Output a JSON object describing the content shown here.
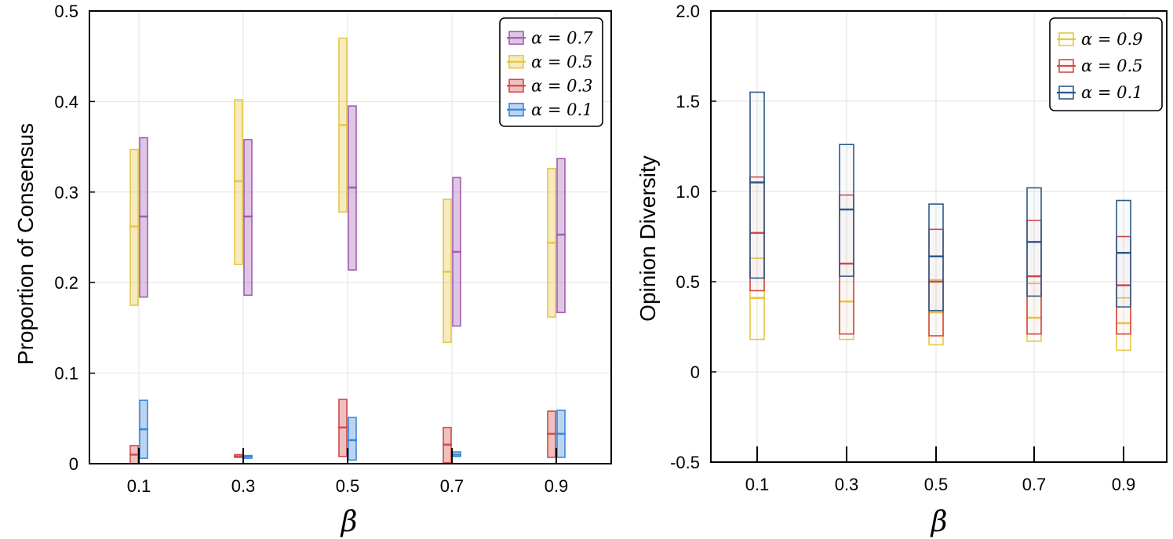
{
  "chart_data": [
    {
      "type": "box",
      "xlabel": "β",
      "ylabel": "Proportion of Consensus",
      "categories": [
        "0.1",
        "0.3",
        "0.5",
        "0.7",
        "0.9"
      ],
      "ylim": [
        0,
        0.5
      ],
      "yticks": [
        "0",
        "0.1",
        "0.2",
        "0.3",
        "0.4",
        "0.5"
      ],
      "grid": true,
      "legend_position": "top-right",
      "series": [
        {
          "name": "α = 0.7",
          "color": "#a35db2",
          "low": [
            0.184,
            0.186,
            0.214,
            0.152,
            0.167
          ],
          "mid": [
            0.273,
            0.273,
            0.305,
            0.234,
            0.253
          ],
          "high": [
            0.36,
            0.358,
            0.395,
            0.316,
            0.337
          ]
        },
        {
          "name": "α = 0.5",
          "color": "#e6c745",
          "low": [
            0.175,
            0.22,
            0.278,
            0.134,
            0.162
          ],
          "mid": [
            0.262,
            0.312,
            0.374,
            0.212,
            0.244
          ],
          "high": [
            0.347,
            0.402,
            0.47,
            0.292,
            0.326
          ]
        },
        {
          "name": "α = 0.3",
          "color": "#d24a4a",
          "low": [
            0.0,
            0.007,
            0.008,
            0.001,
            0.007
          ],
          "mid": [
            0.01,
            0.008,
            0.04,
            0.021,
            0.033
          ],
          "high": [
            0.02,
            0.01,
            0.071,
            0.04,
            0.058
          ]
        },
        {
          "name": "α = 0.1",
          "color": "#3b87d8",
          "low": [
            0.006,
            0.006,
            0.004,
            0.008,
            0.007
          ],
          "mid": [
            0.038,
            0.008,
            0.026,
            0.01,
            0.033
          ],
          "high": [
            0.07,
            0.009,
            0.051,
            0.013,
            0.059
          ]
        }
      ]
    },
    {
      "type": "box",
      "xlabel": "β",
      "ylabel": "Opinion Diversity",
      "categories": [
        "0.1",
        "0.3",
        "0.5",
        "0.7",
        "0.9"
      ],
      "ylim": [
        -0.5,
        2.0
      ],
      "yticks": [
        "-0.5",
        "0",
        "0.5",
        "1.0",
        "1.5",
        "2.0"
      ],
      "grid": true,
      "legend_position": "top-right",
      "series": [
        {
          "name": "α = 0.9",
          "color": "#e6c745",
          "low": [
            0.18,
            0.18,
            0.15,
            0.17,
            0.12
          ],
          "mid": [
            0.41,
            0.39,
            0.33,
            0.3,
            0.27
          ],
          "high": [
            0.63,
            0.6,
            0.51,
            0.49,
            0.41
          ]
        },
        {
          "name": "α = 0.5",
          "color": "#d24a4a",
          "low": [
            0.45,
            0.21,
            0.2,
            0.21,
            0.21
          ],
          "mid": [
            0.77,
            0.6,
            0.5,
            0.53,
            0.48
          ],
          "high": [
            1.08,
            0.98,
            0.79,
            0.84,
            0.75
          ]
        },
        {
          "name": "α = 0.1",
          "color": "#2d5a88",
          "low": [
            0.52,
            0.53,
            0.34,
            0.42,
            0.36
          ],
          "mid": [
            1.05,
            0.9,
            0.64,
            0.72,
            0.66
          ],
          "high": [
            1.55,
            1.26,
            0.93,
            1.02,
            0.95
          ]
        }
      ]
    }
  ]
}
